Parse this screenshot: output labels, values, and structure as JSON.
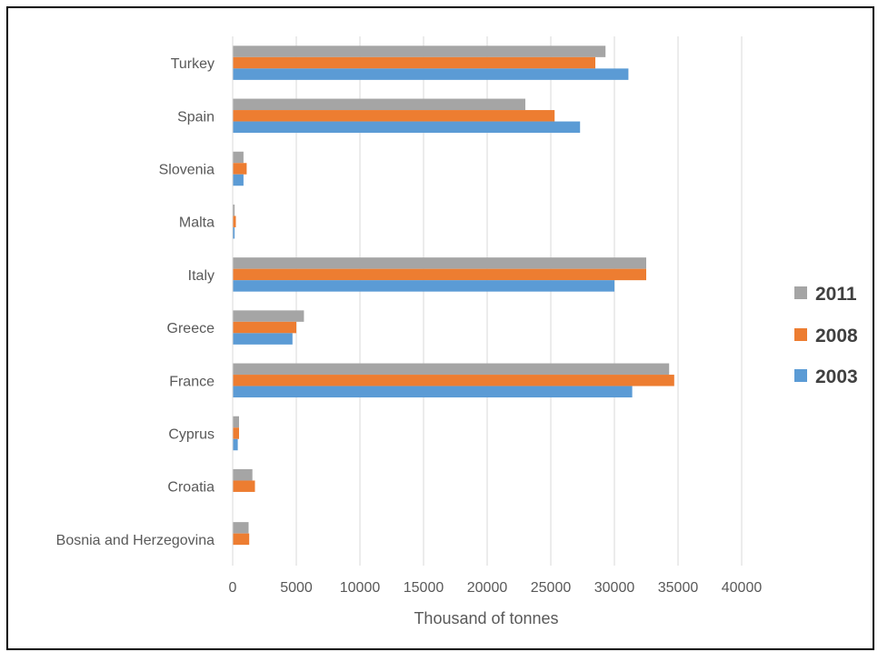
{
  "chart_data": {
    "type": "bar",
    "orientation": "horizontal",
    "title": "",
    "xlabel": "Thousand of tonnes",
    "ylabel": "",
    "categories": [
      "Turkey",
      "Spain",
      "Slovenia",
      "Malta",
      "Italy",
      "Greece",
      "France",
      "Cyprus",
      "Croatia",
      "Bosnia and Herzegovina"
    ],
    "series": [
      {
        "name": "2011",
        "color": "#A5A5A5",
        "values": [
          29300,
          23000,
          850,
          150,
          32500,
          5600,
          34300,
          500,
          1550,
          1250
        ]
      },
      {
        "name": "2008",
        "color": "#ED7D31",
        "values": [
          28500,
          25300,
          1100,
          250,
          32500,
          5000,
          34700,
          500,
          1750,
          1300
        ]
      },
      {
        "name": "2003",
        "color": "#5B9BD5",
        "values": [
          31100,
          27300,
          850,
          150,
          30000,
          4700,
          31400,
          400,
          0,
          0
        ]
      }
    ],
    "xlim": [
      0,
      40000
    ],
    "xticks": [
      0,
      5000,
      10000,
      15000,
      20000,
      25000,
      30000,
      35000,
      40000
    ],
    "grid": true,
    "legend": "right"
  }
}
